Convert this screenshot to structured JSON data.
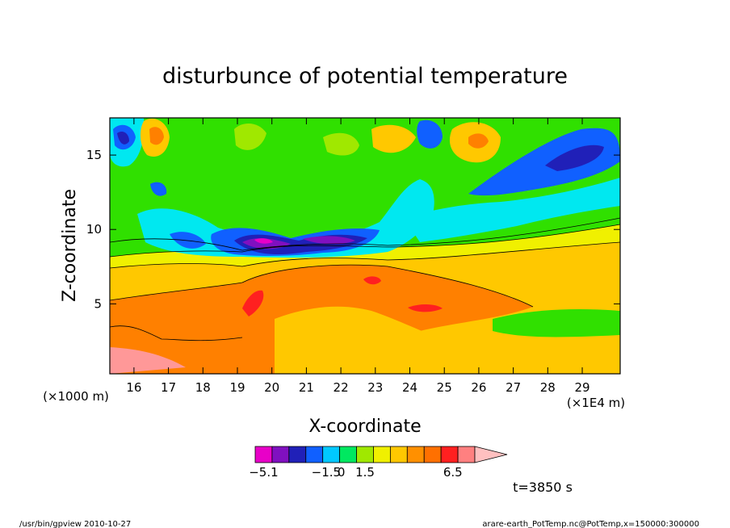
{
  "chart_data": {
    "type": "heatmap",
    "title": "disturbunce of potential temperature",
    "xlabel": "X-coordinate",
    "ylabel": "Z-coordinate",
    "x_unit_left": "(×1000 m)",
    "x_unit_right": "(×1E4 m)",
    "xlim": [
      15.3,
      30.1
    ],
    "ylim": [
      0.3,
      17.5
    ],
    "x_ticks": [
      16,
      17,
      18,
      19,
      20,
      21,
      22,
      23,
      24,
      25,
      26,
      27,
      28,
      29
    ],
    "y_ticks": [
      5,
      10,
      15
    ],
    "colorbar": {
      "labels": [
        {
          "value": -5.1,
          "text": "−5.1"
        },
        {
          "value": -1.5,
          "text": "−1.5"
        },
        {
          "value": 0,
          "text": "0"
        },
        {
          "value": 1.5,
          "text": "1.5"
        },
        {
          "value": 6.5,
          "text": "6.5"
        }
      ],
      "colors": [
        "#e800c8",
        "#8010c0",
        "#2020b8",
        "#1060ff",
        "#00c8ff",
        "#00e860",
        "#a0e800",
        "#f0f000",
        "#ffc800",
        "#ff9000",
        "#ff7000",
        "#ff2020",
        "#ff8080",
        "#ffc0c0"
      ]
    },
    "time_label": "t=3850 s",
    "footer_left": "/usr/bin/gpview   2010-10-27",
    "footer_right": "arare-earth_PotTemp.nc@PotTemp,x=150000:300000"
  },
  "colors": {
    "pink": "#ff9898",
    "red": "#ff2020",
    "orange": "#ff8000",
    "lightorange": "#ffc800",
    "yellow": "#f0f000",
    "lime": "#a0e800",
    "green": "#30e000",
    "cyan": "#00e8f0",
    "blue": "#1060ff",
    "darkblue": "#2020b8",
    "purple": "#8010c0",
    "magenta": "#e800c8"
  }
}
